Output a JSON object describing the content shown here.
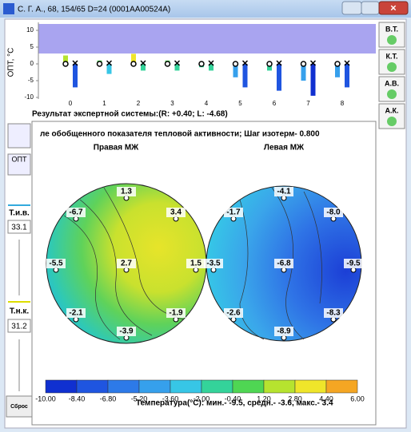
{
  "window": {
    "title": "С. Г. А., 68, 154/65 D=24 (0001AA00524A)"
  },
  "top_chart": {
    "type": "bar",
    "y_label": "ОПТ, °С",
    "ylim": [
      -10,
      12
    ],
    "yticks": [
      -10,
      -5,
      0,
      5,
      10
    ],
    "categories": [
      "0",
      "1",
      "2",
      "3",
      "4",
      "5",
      "6",
      "7",
      "8"
    ],
    "series": [
      {
        "values": [
          2.5,
          1,
          3,
          1,
          -1,
          -4,
          -2,
          -5,
          -4
        ]
      },
      {
        "values": [
          -7,
          -3,
          -2,
          -2,
          -2,
          -7,
          -8,
          -9.5,
          -7
        ]
      }
    ]
  },
  "result": "Результат экспертной системы:(R: +0.40; L: -4.68)",
  "side_buttons": [
    "В.Т.",
    "К.Т.",
    "А.В.",
    "А.К."
  ],
  "left_panel": {
    "opt": "ОПТ",
    "t_iv_label": "Т.и.в.",
    "t_iv": "33.1",
    "t_nk_label": "Т.н.к.",
    "t_nk": "31.2",
    "reset": "Сброс"
  },
  "heading": "ле обобщенного показателя тепловой активности;   Шаг изотерм- 0.800",
  "maps": [
    {
      "title": "Правая МЖ",
      "points": [
        "1.3",
        "-6.7",
        "3.4",
        "-5.5",
        "2.7",
        "1.5",
        "-2.1",
        "-1.9",
        "-3.9"
      ]
    },
    {
      "title": "Левая МЖ",
      "points": [
        "-4.1",
        "-1.7",
        "-8.0",
        "-3.5",
        "-6.8",
        "-9.5",
        "-2.6",
        "-8.3",
        "-8.9"
      ]
    }
  ],
  "colorbar": {
    "ticks": [
      "-10.00",
      "-8.40",
      "-6.80",
      "-5.20",
      "-3.60",
      "-2.00",
      "-0.40",
      "1.20",
      "2.80",
      "4.40",
      "6.00"
    ],
    "stats": "Температура(°C): мин.-   -9.5,  средн.-   -3.6,  макс.-   3.4"
  }
}
